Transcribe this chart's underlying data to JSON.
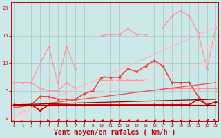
{
  "background_color": "#cce8e8",
  "grid_color": "#aacccc",
  "xlabel": "Vent moyen/en rafales ( km/h )",
  "xlabel_color": "#cc0000",
  "xlabel_fontsize": 7,
  "tick_color": "#cc0000",
  "yticks": [
    0,
    5,
    10,
    15,
    20
  ],
  "xticks": [
    0,
    1,
    2,
    3,
    4,
    5,
    6,
    7,
    8,
    9,
    10,
    11,
    12,
    13,
    14,
    15,
    16,
    17,
    18,
    19,
    20,
    21,
    22,
    23
  ],
  "xlim": [
    -0.3,
    23.3
  ],
  "ylim": [
    -0.5,
    21
  ],
  "series": [
    {
      "x": [
        0,
        1,
        2,
        3,
        4,
        5,
        6,
        7,
        8,
        9,
        10,
        11,
        12,
        13,
        14,
        15,
        16,
        17,
        18,
        19,
        20,
        21,
        22,
        23
      ],
      "y": [
        6.5,
        6.5,
        6.5,
        10.0,
        13.0,
        6.5,
        13.0,
        9.0,
        null,
        null,
        15.0,
        15.2,
        15.2,
        16.2,
        15.2,
        15.2,
        null,
        16.5,
        18.5,
        19.5,
        18.5,
        15.5,
        9.0,
        16.5
      ],
      "color": "#ff9999",
      "lw": 1.0,
      "marker": "D",
      "ms": 2.0,
      "ls": "-"
    },
    {
      "x": [
        0,
        1,
        2,
        3,
        4,
        5,
        6,
        7,
        8,
        9,
        10,
        11,
        12,
        13,
        14,
        15,
        16,
        17,
        18,
        19,
        20,
        21,
        22,
        23
      ],
      "y": [
        6.5,
        6.5,
        6.5,
        5.5,
        5.0,
        5.0,
        6.5,
        5.5,
        null,
        null,
        7.0,
        7.0,
        7.0,
        7.0,
        7.0,
        7.0,
        null,
        5.5,
        5.5,
        5.5,
        5.5,
        5.5,
        5.5,
        5.5
      ],
      "color": "#ff9999",
      "lw": 1.0,
      "marker": "D",
      "ms": 2.0,
      "ls": "-"
    },
    {
      "x": [
        0,
        23
      ],
      "y": [
        0.5,
        16.5
      ],
      "color": "#ffbbbb",
      "lw": 1.0,
      "marker": null,
      "ms": 0,
      "ls": "-"
    },
    {
      "x": [
        0,
        23
      ],
      "y": [
        0.3,
        13.5
      ],
      "color": "#ffcccc",
      "lw": 1.0,
      "marker": null,
      "ms": 0,
      "ls": "-"
    },
    {
      "x": [
        0,
        23
      ],
      "y": [
        0.2,
        10.5
      ],
      "color": "#ffd0d0",
      "lw": 1.0,
      "marker": null,
      "ms": 0,
      "ls": "-"
    },
    {
      "x": [
        0,
        1,
        2,
        3,
        4,
        5,
        6,
        7,
        8,
        9,
        10,
        11,
        12,
        13,
        14,
        15,
        16,
        17,
        18,
        19,
        20,
        21,
        22,
        23
      ],
      "y": [
        2.5,
        2.5,
        2.5,
        4.0,
        4.0,
        3.5,
        3.5,
        3.5,
        4.5,
        5.0,
        7.5,
        7.5,
        7.5,
        9.0,
        8.5,
        9.5,
        10.5,
        9.5,
        6.5,
        6.5,
        6.5,
        4.0,
        2.5,
        3.0
      ],
      "color": "#ee4444",
      "lw": 1.2,
      "marker": "D",
      "ms": 2.0,
      "ls": "-"
    },
    {
      "x": [
        0,
        23
      ],
      "y": [
        2.0,
        6.5
      ],
      "color": "#ee5555",
      "lw": 1.0,
      "marker": null,
      "ms": 0,
      "ls": "-"
    },
    {
      "x": [
        0,
        1,
        2,
        3,
        4,
        5,
        6,
        7,
        8,
        9,
        10,
        11,
        12,
        13,
        14,
        15,
        16,
        17,
        18,
        19,
        20,
        21,
        22,
        23
      ],
      "y": [
        2.5,
        2.5,
        2.5,
        1.5,
        2.5,
        2.5,
        2.5,
        2.5,
        2.5,
        2.5,
        2.5,
        2.5,
        2.5,
        2.5,
        2.5,
        2.5,
        2.5,
        2.5,
        2.5,
        2.5,
        2.5,
        3.5,
        2.5,
        3.0
      ],
      "color": "#cc0000",
      "lw": 1.2,
      "marker": "D",
      "ms": 2.0,
      "ls": "-"
    },
    {
      "x": [
        0,
        23
      ],
      "y": [
        2.5,
        2.5
      ],
      "color": "#aa0000",
      "lw": 0.9,
      "marker": null,
      "ms": 0,
      "ls": "-"
    },
    {
      "x": [
        0,
        23
      ],
      "y": [
        2.5,
        3.5
      ],
      "color": "#990000",
      "lw": 0.9,
      "marker": null,
      "ms": 0,
      "ls": "-"
    }
  ],
  "wind_arrows": {
    "x": [
      0,
      1,
      2,
      3,
      4,
      5,
      6,
      7,
      8,
      9,
      10,
      11,
      12,
      13,
      14,
      15,
      16,
      17,
      18,
      19,
      20,
      21,
      22,
      23
    ],
    "angles": [
      45,
      45,
      45,
      315,
      90,
      225,
      270,
      270,
      270,
      270,
      270,
      270,
      270,
      270,
      270,
      270,
      270,
      270,
      270,
      270,
      270,
      270,
      225,
      135
    ],
    "color": "#cc0000",
    "y": -0.35
  }
}
